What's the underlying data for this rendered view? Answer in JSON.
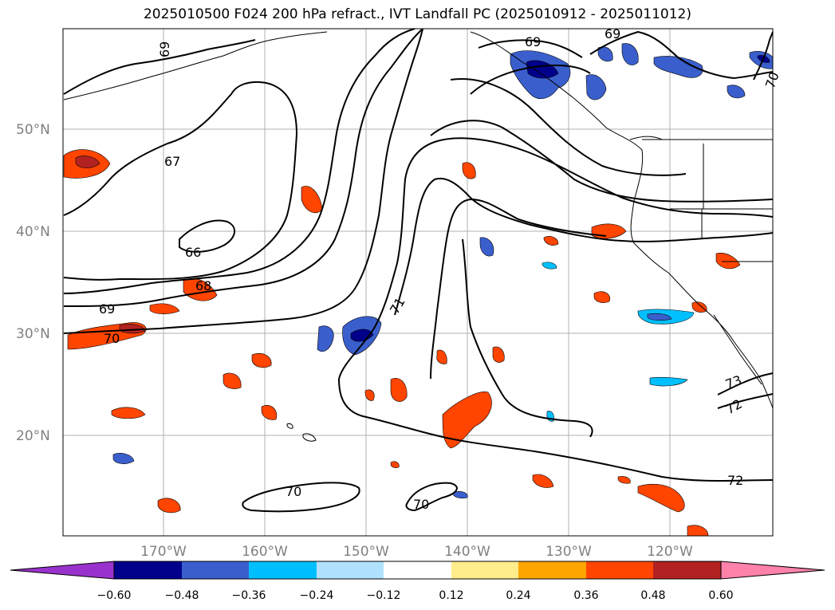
{
  "title": "2025010500 F024 200 hPa refract., IVT Landfall PC (2025010912 - 2025011012)",
  "map": {
    "lat_labels": [
      "50°N",
      "40°N",
      "30°N",
      "20°N"
    ],
    "lon_labels": [
      "170°W",
      "160°W",
      "150°W",
      "140°W",
      "130°W",
      "120°W"
    ],
    "contour_labels": [
      "69",
      "69",
      "69",
      "70",
      "67",
      "66",
      "68",
      "69",
      "70",
      "71",
      "73",
      "72",
      "72",
      "70",
      "70"
    ],
    "colors": {
      "contour": "#000000",
      "grid": "#b0b0b0",
      "coast": "#000000"
    }
  },
  "colorbar": {
    "ticks": [
      "−0.60",
      "−0.48",
      "−0.36",
      "−0.24",
      "−0.12",
      "0.12",
      "0.24",
      "0.36",
      "0.48",
      "0.60"
    ],
    "colors": [
      "#9932cc",
      "#00008b",
      "#3a5fcd",
      "#00bfff",
      "#b0e2ff",
      "#ffffff",
      "#ffec8b",
      "#ffa500",
      "#ff4500",
      "#b22222",
      "#ff82ab"
    ]
  }
}
